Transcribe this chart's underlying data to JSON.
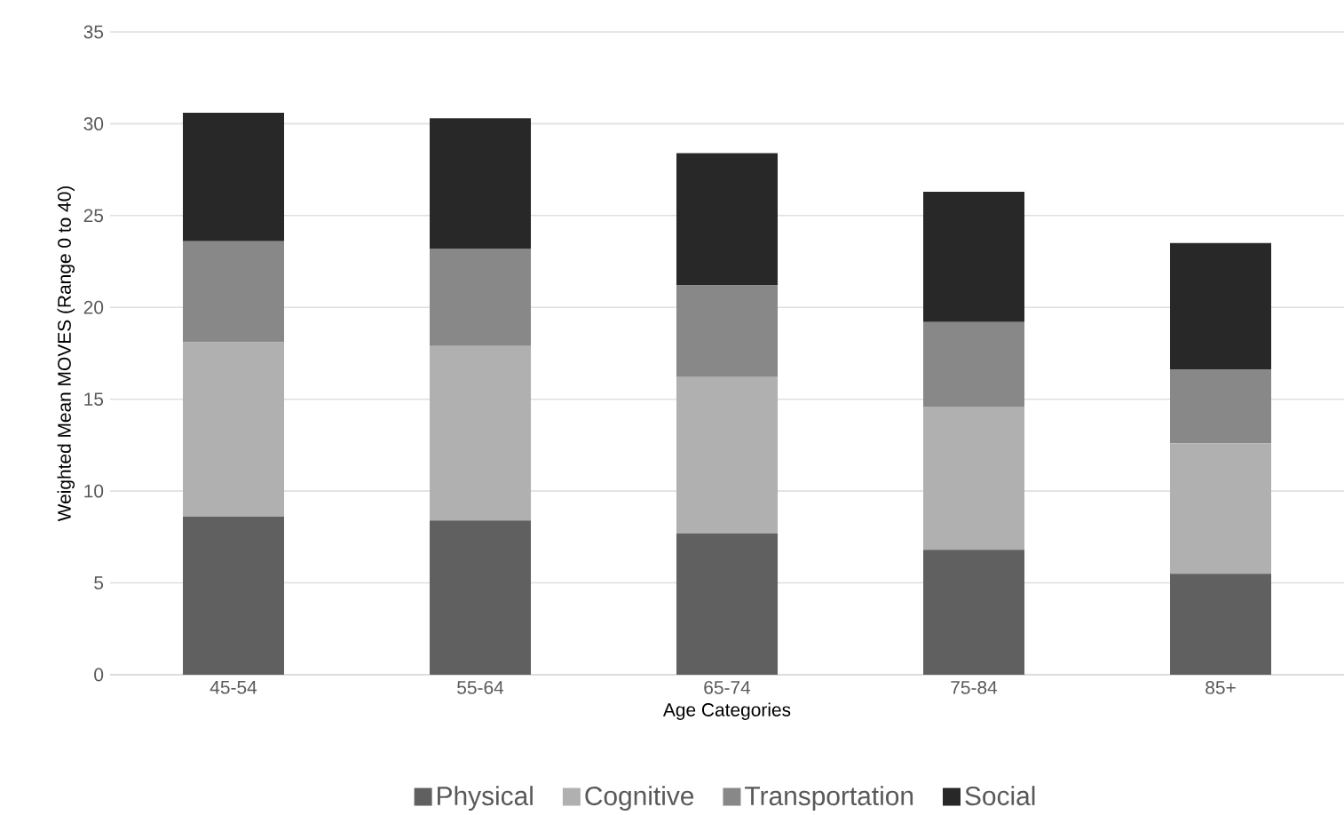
{
  "chart_data": {
    "type": "bar",
    "stacked": true,
    "xlabel": "Age Categories",
    "ylabel": "Weighted Mean MOVES (Range 0 to 40)",
    "categories": [
      "45-54",
      "55-64",
      "65-74",
      "75-84",
      "85+"
    ],
    "series": [
      {
        "name": "Physical",
        "color": "#606060",
        "values": [
          8.6,
          8.4,
          7.7,
          6.8,
          5.5
        ]
      },
      {
        "name": "Cognitive",
        "color": "#b0b0b0",
        "values": [
          9.5,
          9.5,
          8.5,
          7.8,
          7.1
        ]
      },
      {
        "name": "Transportation",
        "color": "#888888",
        "values": [
          5.5,
          5.3,
          5.0,
          4.6,
          4.0
        ]
      },
      {
        "name": "Social",
        "color": "#282828",
        "values": [
          7.0,
          7.1,
          7.2,
          7.1,
          6.9
        ]
      }
    ],
    "ylim": [
      0,
      35
    ],
    "yticks": [
      0,
      5,
      10,
      15,
      20,
      25,
      30,
      35
    ],
    "grid": "y",
    "legend": "bottom"
  }
}
